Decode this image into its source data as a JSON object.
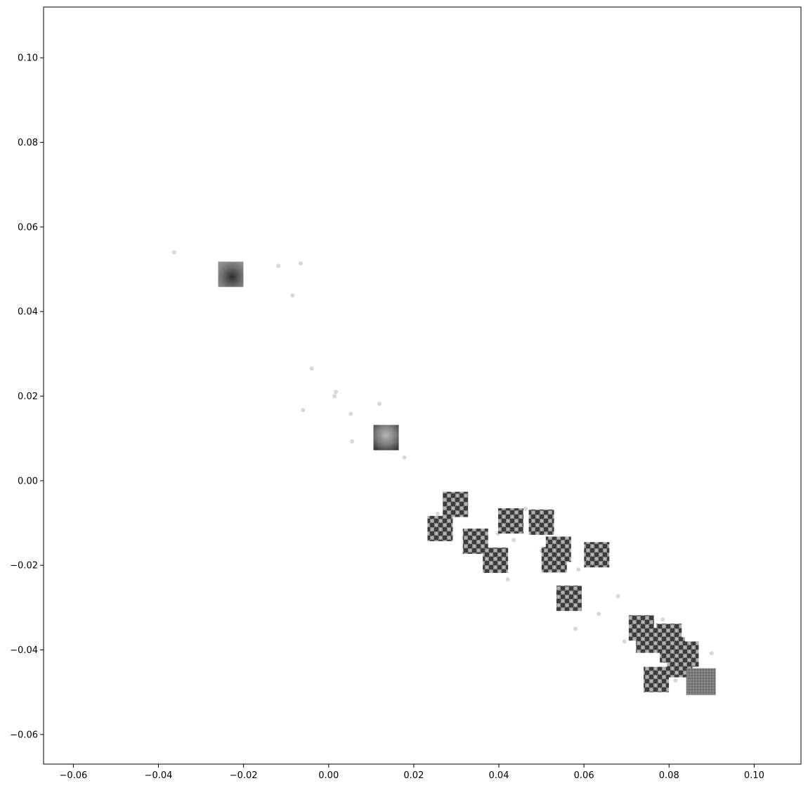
{
  "chart_data": {
    "type": "scatter",
    "title": "",
    "xlabel": "",
    "ylabel": "",
    "xlim": [
      -0.067,
      0.111
    ],
    "ylim": [
      -0.067,
      0.112
    ],
    "grid": false,
    "legend": "none",
    "point_color": "#d8d8d8",
    "thumbnail_colors": {
      "dark": "#3a3a3a",
      "light": "#b8b8b8",
      "flat": "#7a7a7a"
    },
    "xticks": [
      {
        "value": -0.06,
        "label": "−0.06"
      },
      {
        "value": -0.04,
        "label": "−0.04"
      },
      {
        "value": -0.02,
        "label": "−0.02"
      },
      {
        "value": 0.0,
        "label": "0.00"
      },
      {
        "value": 0.02,
        "label": "0.02"
      },
      {
        "value": 0.04,
        "label": "0.04"
      },
      {
        "value": 0.06,
        "label": "0.06"
      },
      {
        "value": 0.08,
        "label": "0.08"
      },
      {
        "value": 0.1,
        "label": "0.10"
      }
    ],
    "yticks": [
      {
        "value": -0.06,
        "label": "−0.06"
      },
      {
        "value": -0.04,
        "label": "−0.04"
      },
      {
        "value": -0.02,
        "label": "−0.02"
      },
      {
        "value": 0.0,
        "label": "0.00"
      },
      {
        "value": 0.02,
        "label": "0.02"
      },
      {
        "value": 0.04,
        "label": "0.04"
      },
      {
        "value": 0.06,
        "label": "0.06"
      },
      {
        "value": 0.08,
        "label": "0.08"
      },
      {
        "value": 0.1,
        "label": "0.10"
      }
    ],
    "points": [
      {
        "x": -0.0363,
        "y": 0.054
      },
      {
        "x": -0.0118,
        "y": 0.0508
      },
      {
        "x": -0.0066,
        "y": 0.0514
      },
      {
        "x": -0.0085,
        "y": 0.0438
      },
      {
        "x": -0.004,
        "y": 0.0265
      },
      {
        "x": -0.006,
        "y": 0.0167
      },
      {
        "x": 0.0017,
        "y": 0.021
      },
      {
        "x": 0.0014,
        "y": 0.02
      },
      {
        "x": 0.0052,
        "y": 0.0158
      },
      {
        "x": 0.0055,
        "y": 0.0093
      },
      {
        "x": 0.0119,
        "y": 0.0182
      },
      {
        "x": 0.0178,
        "y": 0.0055
      },
      {
        "x": 0.0256,
        "y": -0.0078
      },
      {
        "x": 0.0398,
        "y": -0.0125
      },
      {
        "x": 0.0435,
        "y": -0.014
      },
      {
        "x": 0.0463,
        "y": -0.0066
      },
      {
        "x": 0.05,
        "y": -0.0166
      },
      {
        "x": 0.0421,
        "y": -0.0233
      },
      {
        "x": 0.0587,
        "y": -0.021
      },
      {
        "x": 0.058,
        "y": -0.035
      },
      {
        "x": 0.0635,
        "y": -0.0315
      },
      {
        "x": 0.068,
        "y": -0.0273
      },
      {
        "x": 0.0695,
        "y": -0.038
      },
      {
        "x": 0.0785,
        "y": -0.0328
      },
      {
        "x": 0.08,
        "y": -0.0455
      },
      {
        "x": 0.0815,
        "y": -0.0472
      },
      {
        "x": 0.09,
        "y": -0.0408
      }
    ],
    "thumbnails": [
      {
        "x": -0.023,
        "y": 0.0488,
        "pattern": "blob-dark"
      },
      {
        "x": 0.0135,
        "y": 0.0102,
        "pattern": "blob-light"
      },
      {
        "x": 0.0298,
        "y": -0.0056,
        "pattern": "checker"
      },
      {
        "x": 0.0262,
        "y": -0.0113,
        "pattern": "checker"
      },
      {
        "x": 0.0345,
        "y": -0.0143,
        "pattern": "checker"
      },
      {
        "x": 0.0392,
        "y": -0.0188,
        "pattern": "checker"
      },
      {
        "x": 0.0428,
        "y": -0.0095,
        "pattern": "checker"
      },
      {
        "x": 0.05,
        "y": -0.0098,
        "pattern": "checker"
      },
      {
        "x": 0.054,
        "y": -0.0162,
        "pattern": "checker"
      },
      {
        "x": 0.053,
        "y": -0.0187,
        "pattern": "checker"
      },
      {
        "x": 0.063,
        "y": -0.0175,
        "pattern": "checker"
      },
      {
        "x": 0.0565,
        "y": -0.0278,
        "pattern": "checker"
      },
      {
        "x": 0.0735,
        "y": -0.0348,
        "pattern": "checker"
      },
      {
        "x": 0.0752,
        "y": -0.0377,
        "pattern": "checker"
      },
      {
        "x": 0.08,
        "y": -0.0368,
        "pattern": "checker"
      },
      {
        "x": 0.0808,
        "y": -0.04,
        "pattern": "checker"
      },
      {
        "x": 0.084,
        "y": -0.041,
        "pattern": "checker"
      },
      {
        "x": 0.0825,
        "y": -0.0435,
        "pattern": "checker"
      },
      {
        "x": 0.077,
        "y": -0.047,
        "pattern": "checker"
      },
      {
        "x": 0.0875,
        "y": -0.0475,
        "pattern": "flat"
      }
    ]
  }
}
